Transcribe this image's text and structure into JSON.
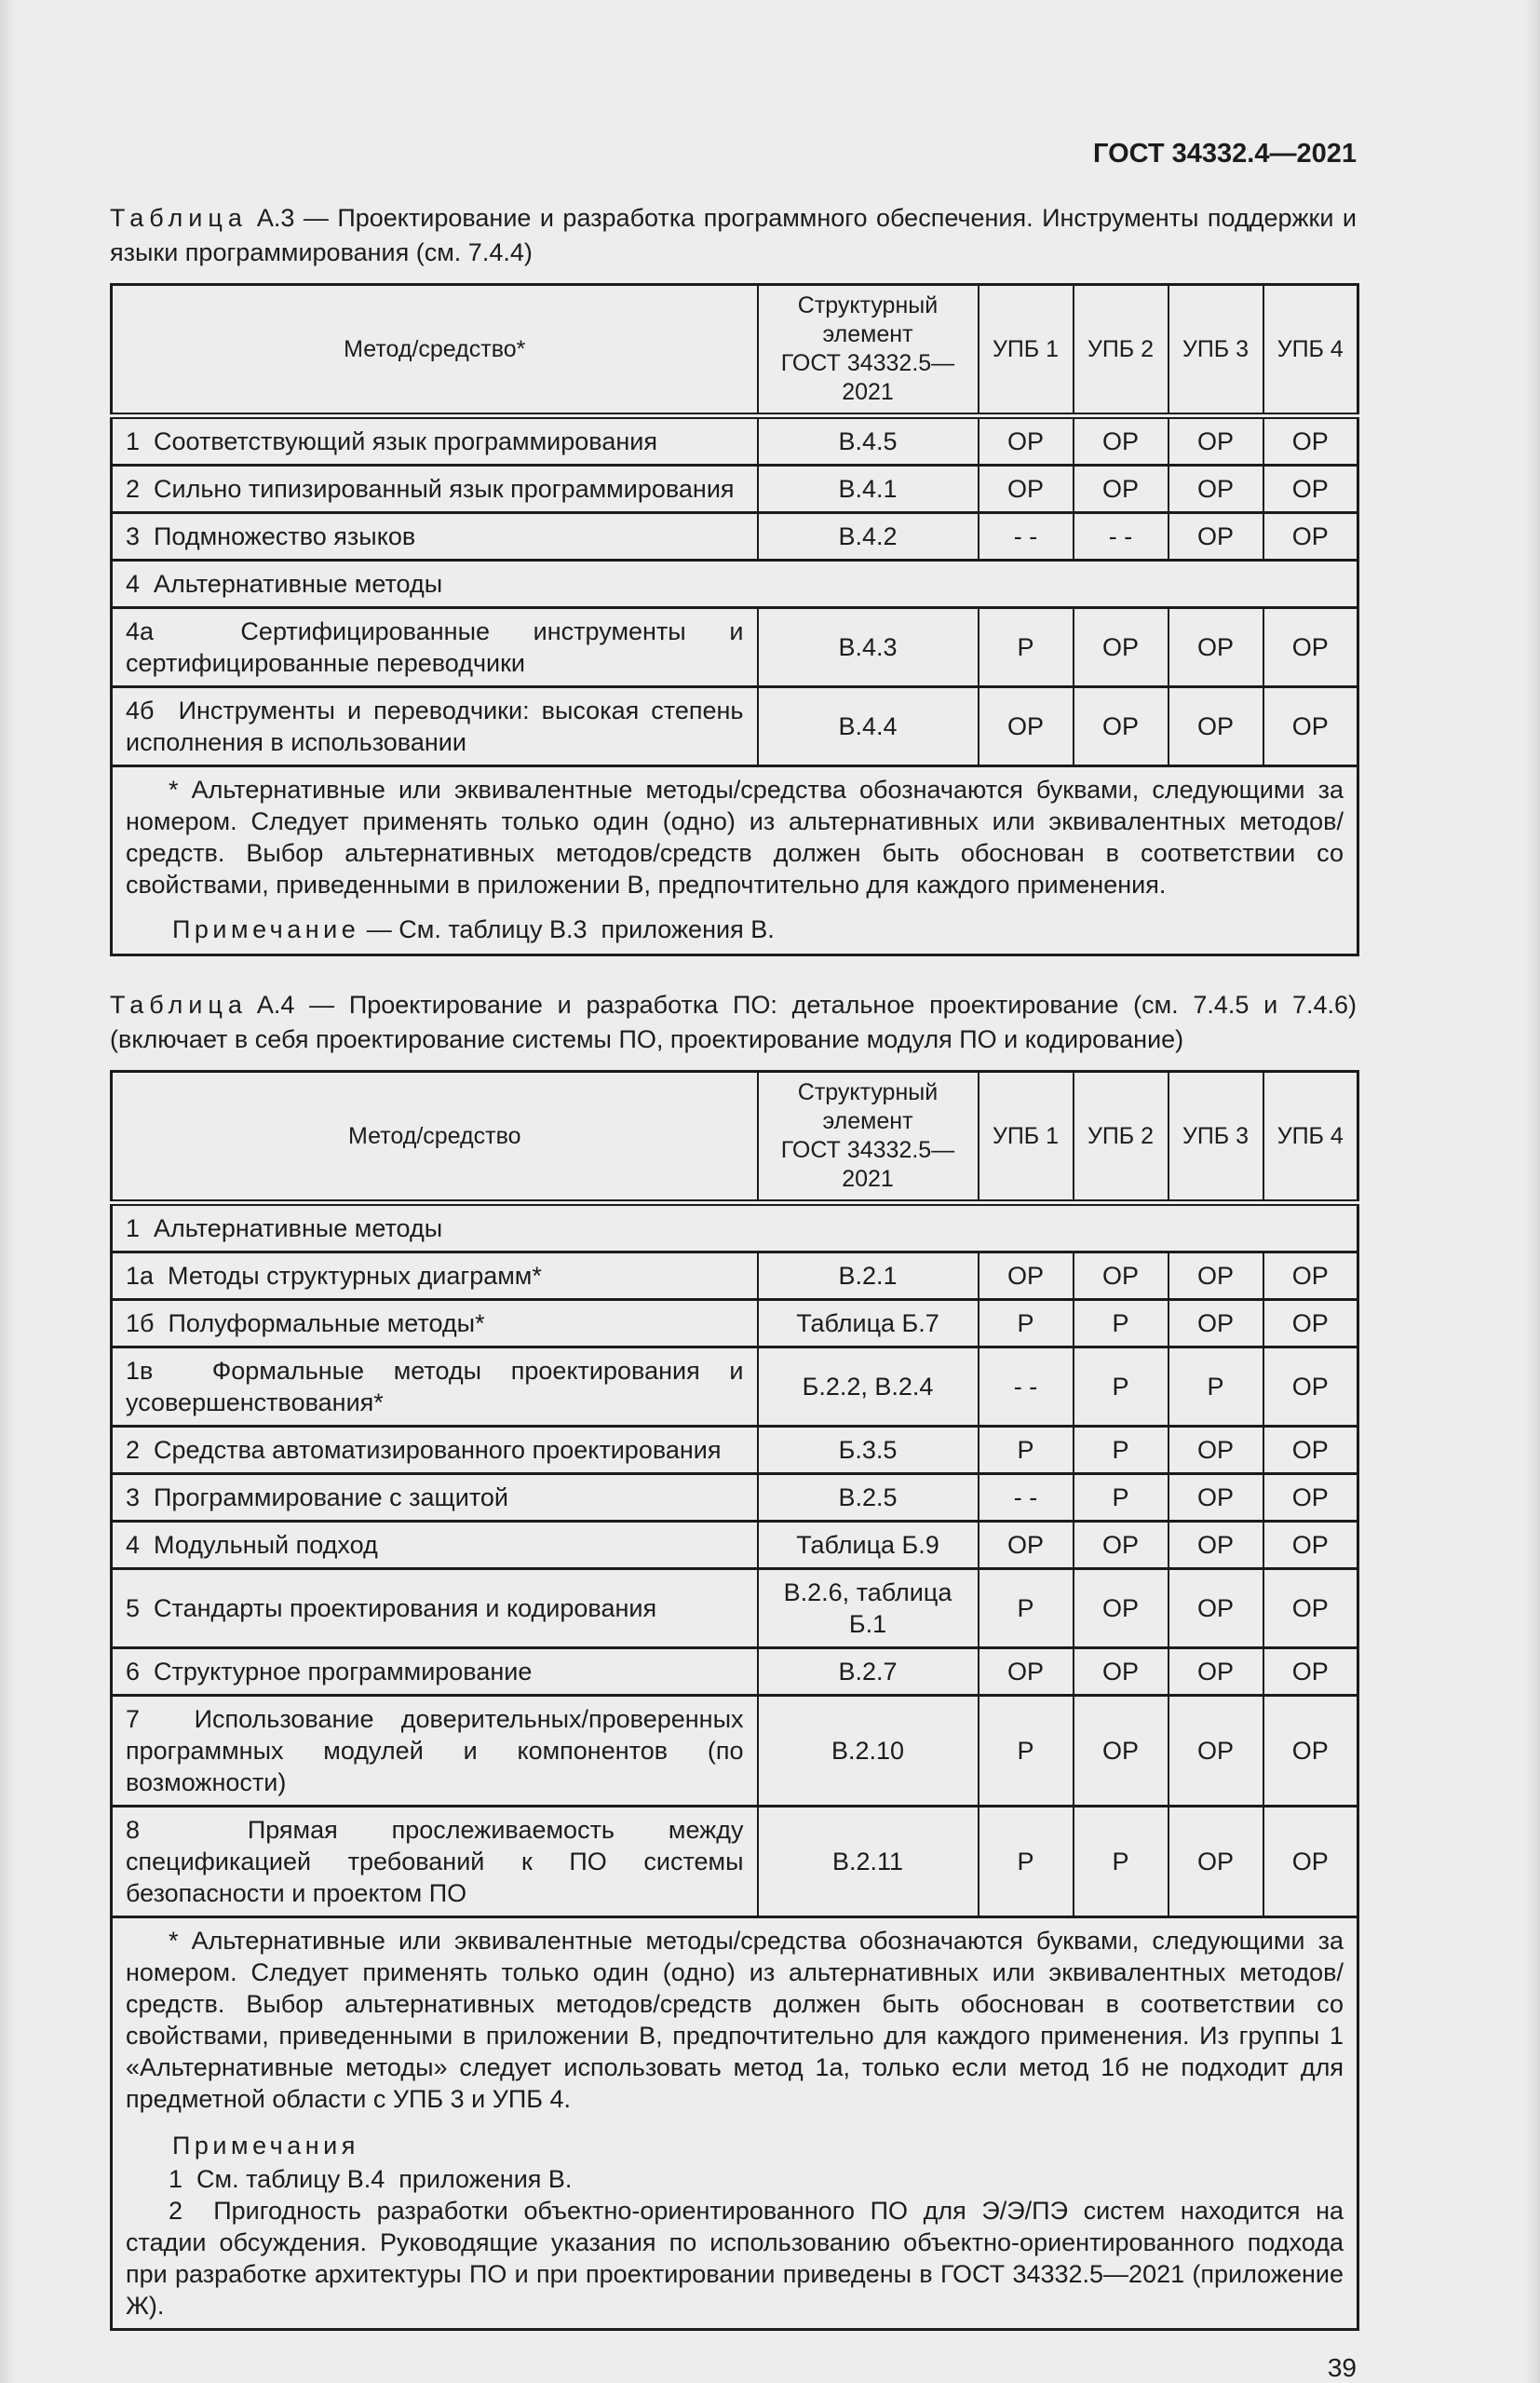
{
  "colors": {
    "background": "#ededed",
    "text": "#1c1c1c",
    "border": "#1b1b1b"
  },
  "page": {
    "header": "ГОСТ 34332.4—2021",
    "page_number": "39"
  },
  "table_a3": {
    "caption_label": "Таблица",
    "caption_text": "А.3 — Проектирование и разработка программного обеспечения. Инструменты поддержки и языки программирования (см. 7.4.4)",
    "columns": [
      "Метод/средство*",
      {
        "lines": [
          "Структурный элемент",
          "ГОСТ 34332.5—2021"
        ]
      },
      "УПБ 1",
      "УПБ 2",
      "УПБ 3",
      "УПБ 4"
    ],
    "rows": [
      {
        "label": "1  Соответствующий язык программирования",
        "ref": "В.4.5",
        "upb": [
          "ОР",
          "ОР",
          "ОР",
          "ОР"
        ]
      },
      {
        "label": "2  Сильно типизированный язык программирования",
        "ref": "В.4.1",
        "upb": [
          "ОР",
          "ОР",
          "ОР",
          "ОР"
        ]
      },
      {
        "label": "3  Подмножество языков",
        "ref": "В.4.2",
        "upb": [
          "- -",
          "- -",
          "ОР",
          "ОР"
        ]
      },
      {
        "span": "4  Альтернативные методы"
      },
      {
        "label": "4а  Сертифицированные инструменты и сертифицированные переводчики",
        "ref": "В.4.3",
        "upb": [
          "Р",
          "ОР",
          "ОР",
          "ОР"
        ]
      },
      {
        "label": "4б  Инструменты и переводчики: высокая степень исполнения в использовании",
        "ref": "В.4.4",
        "upb": [
          "ОР",
          "ОР",
          "ОР",
          "ОР"
        ]
      }
    ],
    "footnote": "* Альтернативные или эквивалентные методы/средства обозначаются буквами, следующими за номером. Следует применять только один (одно) из альтернативных или эквивалентных методов/средств. Выбор альтернативных методов/средств должен быть обоснован в соответствии со свойствами, приведенными в приложении В, предпочтительно для каждого применения.",
    "note": {
      "label": "Примечание",
      "text": "— См. таблицу В.3  приложения В."
    }
  },
  "table_a4": {
    "caption_label": "Таблица",
    "caption_text": "А.4 — Проектирование и разработка ПО: детальное проектирование (см. 7.4.5 и 7.4.6) (включает в себя проектирование системы ПО, проектирование модуля ПО и кодирование)",
    "columns": [
      "Метод/средство",
      {
        "lines": [
          "Структурный элемент",
          "ГОСТ 34332.5—2021"
        ]
      },
      "УПБ 1",
      "УПБ 2",
      "УПБ 3",
      "УПБ 4"
    ],
    "rows": [
      {
        "span": "1  Альтернативные методы"
      },
      {
        "label": "1а  Методы структурных диаграмм*",
        "ref": "В.2.1",
        "upb": [
          "ОР",
          "ОР",
          "ОР",
          "ОР"
        ]
      },
      {
        "label": "1б  Полуформальные методы*",
        "ref": "Таблица Б.7",
        "upb": [
          "Р",
          "Р",
          "ОР",
          "ОР"
        ]
      },
      {
        "label": "1в  Формальные методы проектирования и усовершенствования*",
        "ref": "Б.2.2, В.2.4",
        "upb": [
          "- -",
          "Р",
          "Р",
          "ОР"
        ]
      },
      {
        "label": "2  Средства автоматизированного проектирования",
        "ref": "Б.3.5",
        "upb": [
          "Р",
          "Р",
          "ОР",
          "ОР"
        ]
      },
      {
        "label": "3  Программирование с защитой",
        "ref": "В.2.5",
        "upb": [
          "- -",
          "Р",
          "ОР",
          "ОР"
        ]
      },
      {
        "label": "4  Модульный подход",
        "ref": "Таблица Б.9",
        "upb": [
          "ОР",
          "ОР",
          "ОР",
          "ОР"
        ]
      },
      {
        "label": "5  Стандарты проектирования и кодирования",
        "ref": "В.2.6, таблица Б.1",
        "upb": [
          "Р",
          "ОР",
          "ОР",
          "ОР"
        ]
      },
      {
        "label": "6  Структурное программирование",
        "ref": "В.2.7",
        "upb": [
          "ОР",
          "ОР",
          "ОР",
          "ОР"
        ]
      },
      {
        "label": "7  Использование доверительных/проверенных программных модулей и компонентов (по возможности)",
        "ref": "В.2.10",
        "upb": [
          "Р",
          "ОР",
          "ОР",
          "ОР"
        ]
      },
      {
        "label": "8  Прямая прослеживаемость между спецификацией требований к ПО системы безопасности и проектом ПО",
        "ref": "В.2.11",
        "upb": [
          "Р",
          "Р",
          "ОР",
          "ОР"
        ]
      }
    ],
    "footnote": "* Альтернативные или эквивалентные методы/средства обозначаются буквами, следующими за номером. Следует применять только один (одно) из альтернативных или эквивалентных методов/средств. Выбор альтернативных методов/средств должен быть обоснован в соответствии со свойствами, приведенными в приложении В, предпочтительно для каждого применения. Из группы 1 «Альтернативные методы» следует использовать метод 1а, только если метод 1б не подходит для предметной области с УПБ 3 и УПБ 4.",
    "notes": {
      "label": "Примечания",
      "items": [
        "1  См. таблицу В.4  приложения В.",
        "2  Пригодность разработки объектно-ориентированного ПО для Э/Э/ПЭ систем находится на стадии обсуждения. Руководящие указания по использованию объектно-ориентированного подхода при разработке архитектуры ПО и при проектировании приведены в ГОСТ 34332.5—2021 (приложение Ж)."
      ]
    }
  }
}
